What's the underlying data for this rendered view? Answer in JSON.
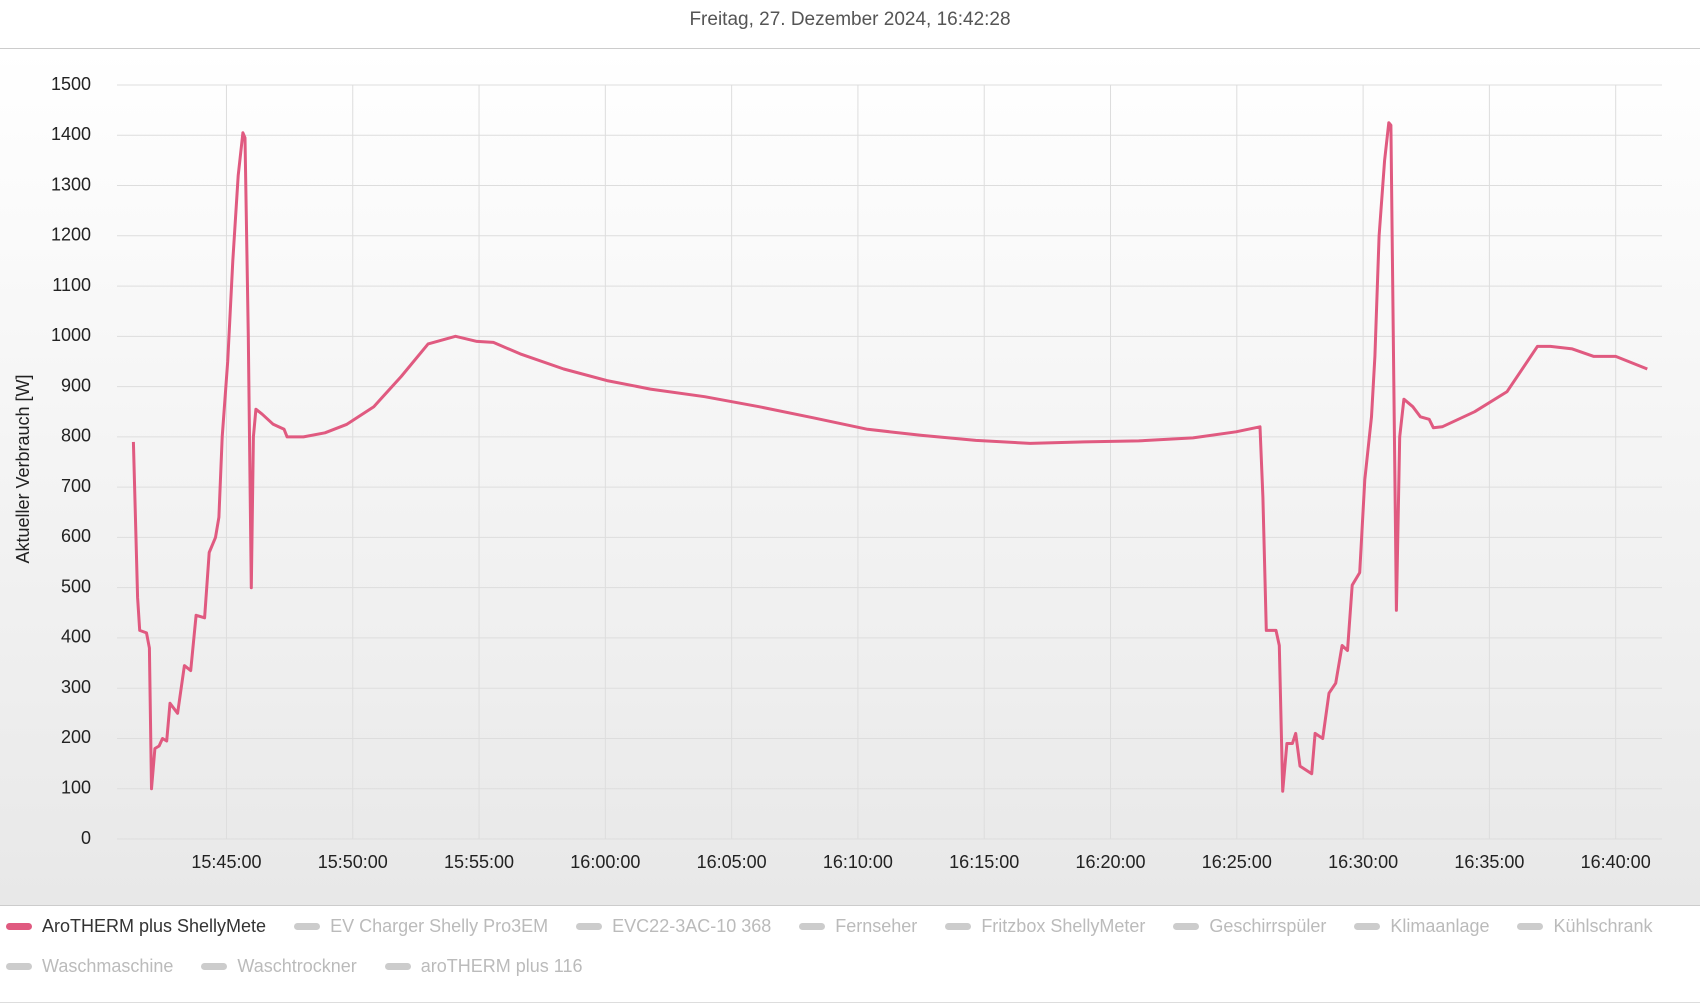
{
  "chart_data": {
    "type": "line",
    "title": "Freitag, 27. Dezember 2024, 16:42:28",
    "y_label": "Aktueller Verbrauch [W]",
    "x": [
      "15:41:19",
      "15:41:29",
      "15:41:34",
      "15:41:50",
      "15:41:57",
      "15:42:02",
      "15:42:10",
      "15:42:20",
      "15:42:28",
      "15:42:38",
      "15:42:46",
      "15:43:04",
      "15:43:20",
      "15:43:35",
      "15:43:48",
      "15:44:08",
      "15:44:19",
      "15:44:34",
      "15:44:42",
      "15:44:50",
      "15:45:03",
      "15:45:15",
      "15:45:28",
      "15:45:39",
      "15:45:44",
      "15:45:52",
      "15:45:59",
      "15:46:04",
      "15:46:10",
      "15:46:25",
      "15:46:51",
      "15:47:17",
      "15:47:24",
      "15:48:03",
      "15:48:54",
      "15:49:46",
      "15:50:50",
      "15:51:55",
      "15:52:59",
      "15:54:04",
      "15:54:55",
      "15:55:34",
      "15:56:38",
      "15:58:21",
      "16:00:04",
      "16:01:47",
      "16:03:56",
      "16:06:05",
      "16:08:14",
      "16:10:23",
      "16:12:32",
      "16:14:40",
      "16:16:49",
      "16:18:58",
      "16:21:07",
      "16:23:16",
      "16:24:58",
      "16:25:55",
      "16:26:02",
      "16:26:10",
      "16:26:33",
      "16:26:41",
      "16:26:49",
      "16:26:59",
      "16:27:12",
      "16:27:20",
      "16:27:30",
      "16:27:58",
      "16:28:06",
      "16:28:24",
      "16:28:39",
      "16:28:55",
      "16:29:10",
      "16:29:23",
      "16:29:34",
      "16:29:52",
      "16:30:04",
      "16:30:20",
      "16:30:28",
      "16:30:38",
      "16:30:51",
      "16:31:01",
      "16:31:06",
      "16:31:19",
      "16:31:27",
      "16:31:37",
      "16:31:58",
      "16:32:16",
      "16:32:37",
      "16:32:47",
      "16:33:08",
      "16:34:25",
      "16:35:42",
      "16:36:54",
      "16:37:25",
      "16:38:17",
      "16:39:08",
      "16:40:00",
      "16:41:15"
    ],
    "series": [
      {
        "name": "AroTHERM plus ShellyMete",
        "color": "#e05a80",
        "values": [
          790,
          480,
          415,
          410,
          380,
          100,
          180,
          185,
          200,
          195,
          270,
          250,
          345,
          335,
          445,
          440,
          570,
          600,
          640,
          800,
          950,
          1150,
          1320,
          1405,
          1395,
          1000,
          500,
          800,
          855,
          845,
          825,
          815,
          800,
          800,
          808,
          825,
          860,
          920,
          985,
          1000,
          990,
          988,
          965,
          935,
          912,
          895,
          880,
          860,
          838,
          815,
          803,
          793,
          787,
          790,
          792,
          798,
          810,
          820,
          680,
          415,
          415,
          385,
          95,
          190,
          190,
          210,
          145,
          130,
          210,
          200,
          290,
          310,
          385,
          375,
          505,
          530,
          715,
          840,
          960,
          1200,
          1350,
          1425,
          1420,
          455,
          800,
          875,
          860,
          840,
          835,
          818,
          820,
          850,
          890,
          980,
          980,
          975,
          960,
          960,
          935
        ]
      }
    ],
    "hidden_series": [
      {
        "name": "EV Charger Shelly Pro3EM",
        "color": "#cccccc"
      },
      {
        "name": "EVC22-3AC-10 368",
        "color": "#cccccc"
      },
      {
        "name": "Fernseher",
        "color": "#cccccc"
      },
      {
        "name": "Fritzbox ShellyMeter",
        "color": "#cccccc"
      },
      {
        "name": "Geschirrspüler",
        "color": "#cccccc"
      },
      {
        "name": "Klimaanlage",
        "color": "#cccccc"
      },
      {
        "name": "Kühlschrank",
        "color": "#cccccc"
      },
      {
        "name": "Waschmaschine",
        "color": "#cccccc"
      },
      {
        "name": "Waschtrockner",
        "color": "#cccccc"
      },
      {
        "name": "aroTHERM plus 116",
        "color": "#cccccc"
      }
    ],
    "xlim": [
      "15:40:40",
      "16:41:50"
    ],
    "xticks": [
      "15:45:00",
      "15:50:00",
      "15:55:00",
      "16:00:00",
      "16:05:00",
      "16:10:00",
      "16:15:00",
      "16:20:00",
      "16:25:00",
      "16:30:00",
      "16:35:00",
      "16:40:00"
    ],
    "ylim": [
      0,
      1500
    ],
    "yticks": [
      0,
      100,
      200,
      300,
      400,
      500,
      600,
      700,
      800,
      900,
      1000,
      1100,
      1200,
      1300,
      1400,
      1500
    ],
    "grid": true
  }
}
